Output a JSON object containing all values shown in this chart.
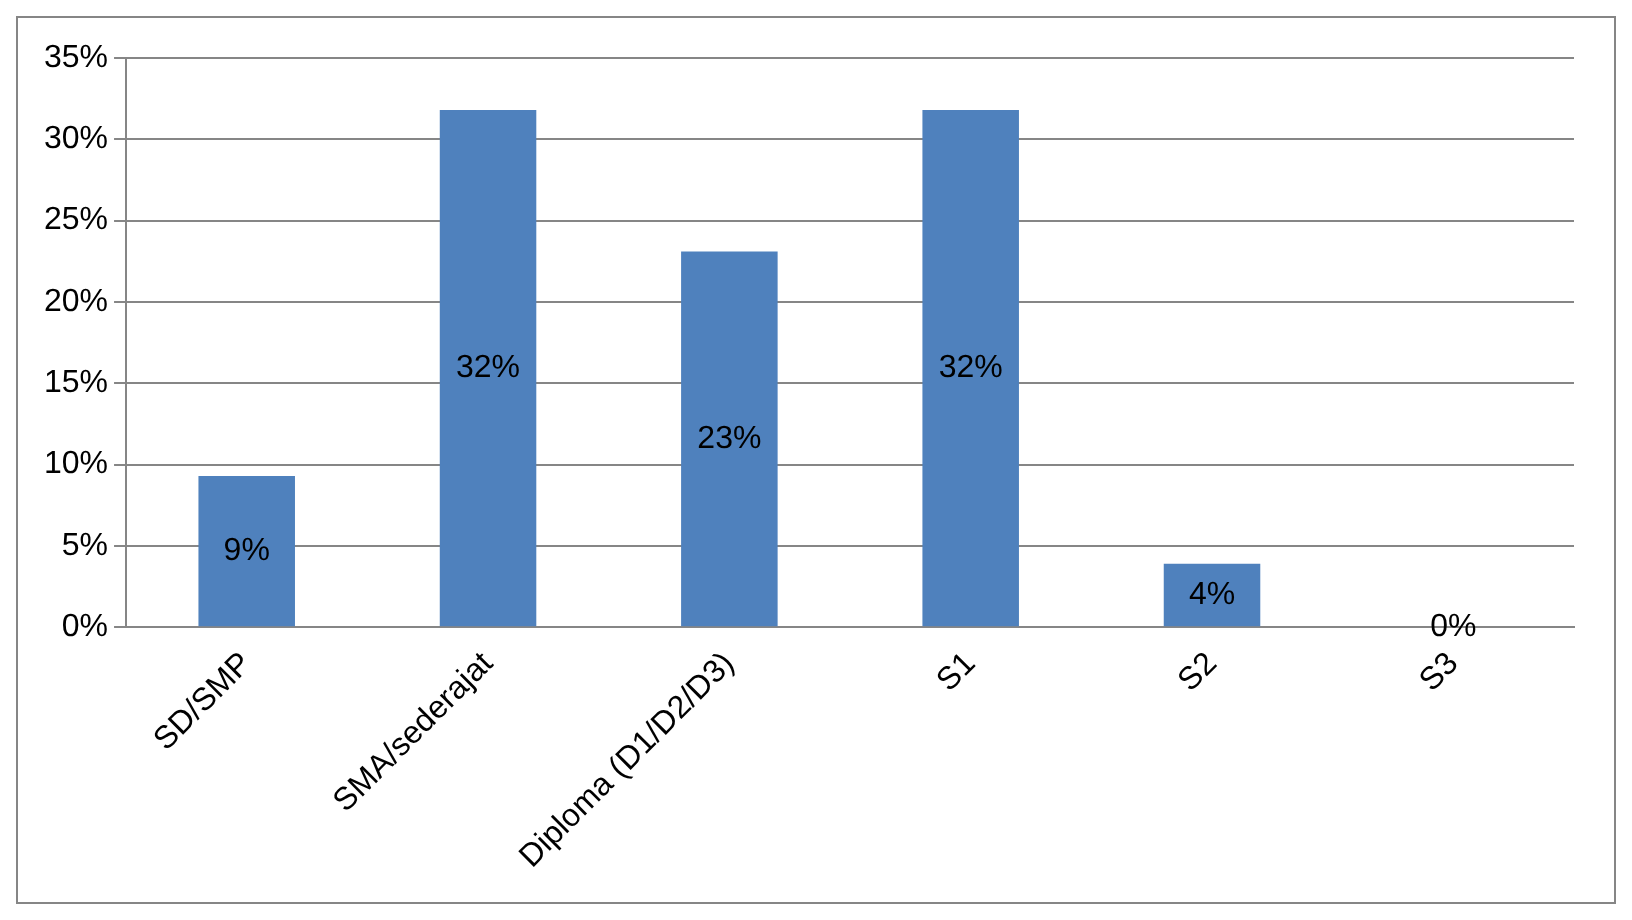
{
  "chart_data": {
    "type": "bar",
    "categories": [
      "SD/SMP",
      "SMA/sederajat",
      "Diploma (D1/D2/D3)",
      "S1",
      "S2",
      "S3"
    ],
    "values": [
      9.3,
      31.8,
      23.1,
      31.8,
      3.9,
      0
    ],
    "value_labels": [
      "9%",
      "32%",
      "23%",
      "32%",
      "4%",
      "0%"
    ],
    "color": "#4f81bd",
    "ylim": [
      0,
      35
    ],
    "yticks": [
      {
        "value": 0,
        "label": "0%"
      },
      {
        "value": 5,
        "label": "5%"
      },
      {
        "value": 10,
        "label": "10%"
      },
      {
        "value": 15,
        "label": "15%"
      },
      {
        "value": 20,
        "label": "20%"
      },
      {
        "value": 25,
        "label": "25%"
      },
      {
        "value": 30,
        "label": "30%"
      },
      {
        "value": 35,
        "label": "35%"
      }
    ],
    "grid": "y"
  }
}
